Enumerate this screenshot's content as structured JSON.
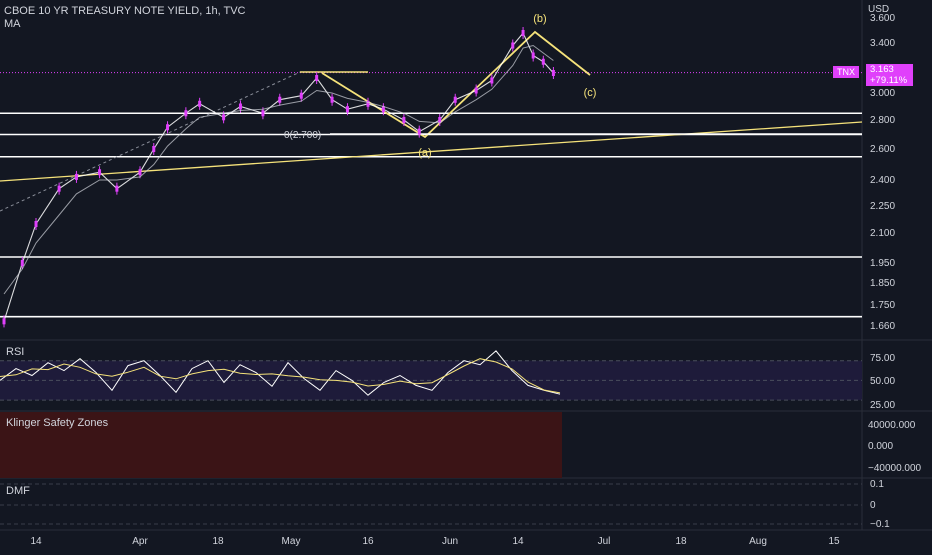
{
  "header": {
    "title": "CBOE 10 YR TREASURY NOTE YIELD, 1h, TVC",
    "indicator": "MA"
  },
  "axis": {
    "currency": "USD",
    "symbol_badge": "TNX",
    "last_price": "3.163",
    "change": "+79.11%"
  },
  "panes": {
    "rsi": "RSI",
    "klinger": "Klinger Safety Zones",
    "dmf": "DMF"
  },
  "annotations": {
    "a": "(a)",
    "b": "(b)",
    "c": "(c)",
    "fib": "0(2.700)"
  },
  "colors": {
    "background": "#131722",
    "candle": "#e040fb",
    "ma": "#d1d4dc",
    "drawing": "#f5e27a",
    "level": "#ffffff",
    "rsi_band": "#1e1b3a",
    "klinger_zone": "#3b1416"
  },
  "chart_data": [
    {
      "type": "line",
      "name": "price",
      "title": "CBOE 10 YR TREASURY NOTE YIELD, 1h, TVC",
      "x_ticks": [
        "14",
        "Apr",
        "18",
        "May",
        "16",
        "Jun",
        "14",
        "Jul",
        "18",
        "Aug",
        "15"
      ],
      "y_ticks": [
        "3.600",
        "3.400",
        "3.200",
        "3.000",
        "2.800",
        "2.600",
        "2.400",
        "2.250",
        "2.100",
        "1.950",
        "1.850",
        "1.750",
        "1.660"
      ],
      "y_unit": "USD",
      "series": [
        {
          "name": "TNX",
          "x": [
            "Mar 7",
            "Mar 11",
            "Mar 14",
            "Mar 18",
            "Mar 21",
            "Mar 25",
            "Mar 28",
            "Apr 1",
            "Apr 4",
            "Apr 7",
            "Apr 11",
            "Apr 14",
            "Apr 19",
            "Apr 22",
            "Apr 26",
            "Apr 29",
            "May 3",
            "May 6",
            "May 9",
            "May 12",
            "May 16",
            "May 19",
            "May 23",
            "May 26",
            "May 30",
            "Jun 2",
            "Jun 6",
            "Jun 9",
            "Jun 13",
            "Jun 15",
            "Jun 17",
            "Jun 19",
            "Jun 21"
          ],
          "values": [
            1.68,
            1.95,
            2.15,
            2.35,
            2.42,
            2.45,
            2.35,
            2.45,
            2.6,
            2.75,
            2.85,
            2.92,
            2.82,
            2.9,
            2.85,
            2.95,
            2.98,
            3.12,
            2.95,
            2.88,
            2.92,
            2.88,
            2.8,
            2.72,
            2.8,
            2.95,
            3.02,
            3.1,
            3.38,
            3.48,
            3.3,
            3.25,
            3.16
          ]
        }
      ],
      "ma_series": [
        1.8,
        1.92,
        2.05,
        2.2,
        2.32,
        2.4,
        2.4,
        2.42,
        2.5,
        2.62,
        2.74,
        2.82,
        2.85,
        2.87,
        2.88,
        2.91,
        2.94,
        3.02,
        3.0,
        2.96,
        2.93,
        2.9,
        2.85,
        2.79,
        2.78,
        2.86,
        2.95,
        3.03,
        3.22,
        3.36,
        3.38,
        3.32,
        3.26
      ],
      "horizontal_levels": [
        2.85,
        2.7,
        2.55,
        1.98,
        1.7
      ],
      "last_value": 3.163,
      "change_pct": "+79.11%"
    },
    {
      "type": "line",
      "name": "RSI",
      "y_ticks": [
        "75.00",
        "50.00",
        "25.00"
      ],
      "ylim": [
        20,
        90
      ],
      "band": [
        30,
        70
      ],
      "values": [
        50,
        62,
        55,
        68,
        60,
        72,
        58,
        40,
        65,
        70,
        55,
        38,
        62,
        70,
        48,
        66,
        58,
        44,
        68,
        52,
        40,
        60,
        50,
        35,
        48,
        55,
        45,
        40,
        58,
        70,
        66,
        80,
        60,
        45,
        40,
        36
      ]
    },
    {
      "type": "area",
      "name": "Klinger Safety Zones",
      "y_ticks": [
        "40000.000",
        "0.000",
        "−40000.000"
      ]
    },
    {
      "type": "line",
      "name": "DMF",
      "y_ticks": [
        "0.1",
        "0",
        "−0.1"
      ]
    }
  ]
}
